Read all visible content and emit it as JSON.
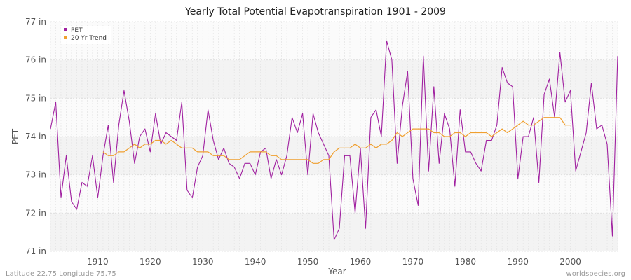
{
  "chart_data": {
    "type": "line",
    "title": "Yearly Total Potential Evapotranspiration 1901 - 2009",
    "xlabel": "Year",
    "ylabel": "PET",
    "xlim": [
      1901,
      2009
    ],
    "ylim": [
      71,
      77
    ],
    "yticks": [
      71,
      72,
      73,
      74,
      75,
      76,
      77
    ],
    "ytick_labels": [
      "71 in",
      "72 in",
      "73 in",
      "74 in",
      "75 in",
      "76 in",
      "77 in"
    ],
    "xticks": [
      1910,
      1920,
      1930,
      1940,
      1950,
      1960,
      1970,
      1980,
      1990,
      2000
    ],
    "xtick_labels": [
      "1910",
      "1920",
      "1930",
      "1940",
      "1950",
      "1960",
      "1970",
      "1980",
      "1990",
      "2000"
    ],
    "legend_position": "top-left",
    "series": [
      {
        "name": "PET",
        "color": "#a020a0",
        "x_start": 1901,
        "values": [
          74.2,
          74.9,
          72.4,
          73.5,
          72.3,
          72.1,
          72.8,
          72.7,
          73.5,
          72.4,
          73.5,
          74.3,
          72.8,
          74.3,
          75.2,
          74.4,
          73.3,
          74.0,
          74.2,
          73.6,
          74.6,
          73.8,
          74.1,
          74.0,
          73.9,
          74.9,
          72.6,
          72.4,
          73.2,
          73.5,
          74.7,
          73.9,
          73.4,
          73.7,
          73.3,
          73.2,
          72.9,
          73.3,
          73.3,
          73.0,
          73.6,
          73.7,
          72.9,
          73.4,
          73.0,
          73.5,
          74.5,
          74.1,
          74.6,
          73.0,
          74.6,
          74.1,
          73.8,
          73.5,
          71.3,
          71.6,
          73.5,
          73.5,
          72.0,
          73.7,
          71.6,
          74.5,
          74.7,
          74.0,
          76.5,
          76.0,
          73.3,
          74.8,
          75.7,
          72.9,
          72.2,
          76.1,
          73.1,
          75.3,
          73.3,
          74.6,
          74.2,
          72.7,
          74.7,
          73.6,
          73.6,
          73.3,
          73.1,
          73.9,
          73.9,
          74.3,
          75.8,
          75.4,
          75.3,
          72.9,
          74.0,
          74.0,
          74.5,
          72.8,
          75.1,
          75.5,
          74.5,
          76.2,
          74.9,
          75.2,
          73.1,
          73.6,
          74.1,
          75.4,
          74.2,
          74.3,
          73.8,
          71.4,
          76.1
        ]
      },
      {
        "name": "20 Yr Trend",
        "color": "#f0a030",
        "x_start": 1911,
        "values": [
          73.6,
          73.5,
          73.5,
          73.6,
          73.6,
          73.7,
          73.8,
          73.7,
          73.8,
          73.8,
          73.9,
          73.9,
          73.8,
          73.9,
          73.8,
          73.7,
          73.7,
          73.7,
          73.6,
          73.6,
          73.6,
          73.5,
          73.5,
          73.5,
          73.4,
          73.4,
          73.4,
          73.5,
          73.6,
          73.6,
          73.6,
          73.6,
          73.5,
          73.5,
          73.4,
          73.4,
          73.4,
          73.4,
          73.4,
          73.4,
          73.3,
          73.3,
          73.4,
          73.4,
          73.6,
          73.7,
          73.7,
          73.7,
          73.8,
          73.7,
          73.7,
          73.8,
          73.7,
          73.8,
          73.8,
          73.9,
          74.1,
          74.0,
          74.1,
          74.2,
          74.2,
          74.2,
          74.2,
          74.1,
          74.1,
          74.0,
          74.0,
          74.1,
          74.1,
          74.0,
          74.1,
          74.1,
          74.1,
          74.1,
          74.0,
          74.1,
          74.2,
          74.1,
          74.2,
          74.3,
          74.4,
          74.3,
          74.3,
          74.4,
          74.5,
          74.5,
          74.5,
          74.5,
          74.3,
          74.3
        ]
      }
    ]
  },
  "footer": {
    "left": "Latitude 22.75 Longitude 75.75",
    "right": "worldspecies.org"
  }
}
